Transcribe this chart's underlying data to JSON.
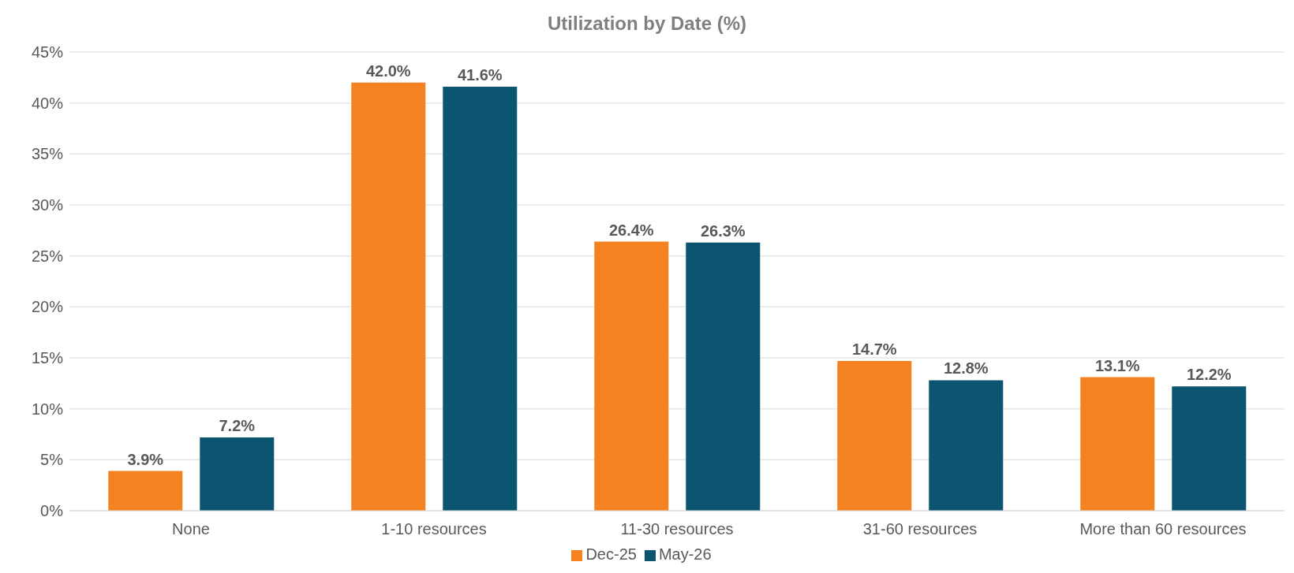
{
  "chart_data": {
    "type": "bar",
    "title": "Utilization by Date (%)",
    "categories": [
      "None",
      "1-10 resources",
      "11-30 resources",
      "31-60 resources",
      "More than 60 resources"
    ],
    "series": [
      {
        "name": "Dec-25",
        "color": "#f58220",
        "values": [
          3.9,
          42.0,
          26.4,
          14.7,
          13.1
        ],
        "value_labels": [
          "3.9%",
          "42.0%",
          "26.4%",
          "14.7%",
          "13.1%"
        ]
      },
      {
        "name": "May-26",
        "color": "#0b5570",
        "values": [
          7.2,
          41.6,
          26.3,
          12.8,
          12.2
        ],
        "value_labels": [
          "7.2%",
          "41.6%",
          "26.3%",
          "12.8%",
          "12.2%"
        ]
      }
    ],
    "ylim": [
      0,
      45
    ],
    "yticks": [
      {
        "value": 0,
        "label": "0%"
      },
      {
        "value": 5,
        "label": "5%"
      },
      {
        "value": 10,
        "label": "10%"
      },
      {
        "value": 15,
        "label": "15%"
      },
      {
        "value": 20,
        "label": "20%"
      },
      {
        "value": 25,
        "label": "25%"
      },
      {
        "value": 30,
        "label": "30%"
      },
      {
        "value": 35,
        "label": "35%"
      },
      {
        "value": 40,
        "label": "40%"
      },
      {
        "value": 45,
        "label": "45%"
      }
    ],
    "grid": "y",
    "legend": "bottom"
  }
}
